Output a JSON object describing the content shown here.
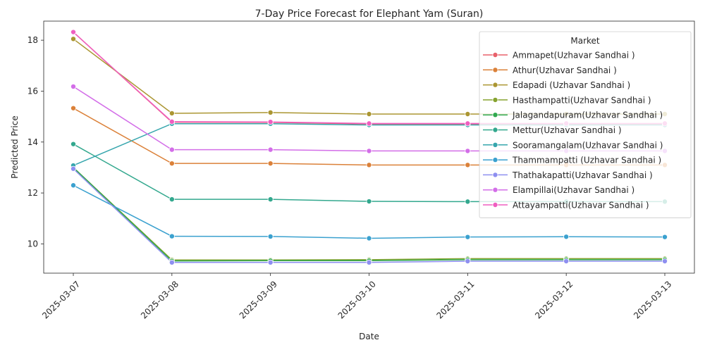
{
  "chart_data": {
    "type": "line",
    "title": "7-Day Price Forecast for Elephant Yam (Suran)",
    "xlabel": "Date",
    "ylabel": "Predicted Price",
    "ylim": [
      8.85,
      18.75
    ],
    "yticks": [
      10,
      12,
      14,
      16,
      18
    ],
    "x": [
      "2025-03-07",
      "2025-03-08",
      "2025-03-09",
      "2025-03-10",
      "2025-03-11",
      "2025-03-12",
      "2025-03-13"
    ],
    "legend_title": "Market",
    "legend_position": "top-right",
    "grid": false,
    "series": [
      {
        "name": "Ammapet(Uzhavar Sandhai )",
        "color": "#e8616b",
        "values": [
          18.32,
          14.78,
          14.77,
          14.71,
          14.71,
          14.71,
          14.71
        ]
      },
      {
        "name": "Athur(Uzhavar Sandhai )",
        "color": "#db8139",
        "values": [
          15.33,
          13.16,
          13.16,
          13.1,
          13.1,
          13.1,
          13.1
        ]
      },
      {
        "name": "Edapadi (Uzhavar Sandhai )",
        "color": "#ab9632",
        "values": [
          18.05,
          15.13,
          15.16,
          15.1,
          15.1,
          15.1,
          15.1
        ]
      },
      {
        "name": "Hasthampatti(Uzhavar Sandhai )",
        "color": "#86a32f",
        "values": [
          13.0,
          9.37,
          9.37,
          9.38,
          9.42,
          9.42,
          9.42
        ]
      },
      {
        "name": "Jalagandapuram(Uzhavar Sandhai )",
        "color": "#30a84e",
        "values": [
          13.0,
          9.33,
          9.34,
          9.34,
          9.38,
          9.38,
          9.38
        ]
      },
      {
        "name": "Mettur(Uzhavar Sandhai )",
        "color": "#33a88e",
        "values": [
          13.92,
          11.75,
          11.75,
          11.67,
          11.66,
          11.66,
          11.66
        ]
      },
      {
        "name": "Sooramangalam(Uzhavar Sandhai )",
        "color": "#36a6ad",
        "values": [
          13.08,
          14.72,
          14.72,
          14.67,
          14.67,
          14.67,
          14.67
        ]
      },
      {
        "name": "Thammampatti (Uzhavar Sandhai )",
        "color": "#3ba1cf",
        "values": [
          12.3,
          10.3,
          10.29,
          10.22,
          10.27,
          10.28,
          10.27
        ]
      },
      {
        "name": "Thathakapatti(Uzhavar Sandhai )",
        "color": "#8e8ff0",
        "values": [
          12.95,
          9.27,
          9.27,
          9.27,
          9.32,
          9.32,
          9.32
        ]
      },
      {
        "name": "Elampillai(Uzhavar Sandhai )",
        "color": "#d36ee8",
        "values": [
          16.18,
          13.7,
          13.7,
          13.65,
          13.65,
          13.65,
          13.65
        ]
      },
      {
        "name": "Attayampatti(Uzhavar Sandhai )",
        "color": "#ef5ec0",
        "values": [
          18.32,
          14.8,
          14.79,
          14.73,
          14.73,
          14.73,
          14.73
        ]
      }
    ]
  }
}
